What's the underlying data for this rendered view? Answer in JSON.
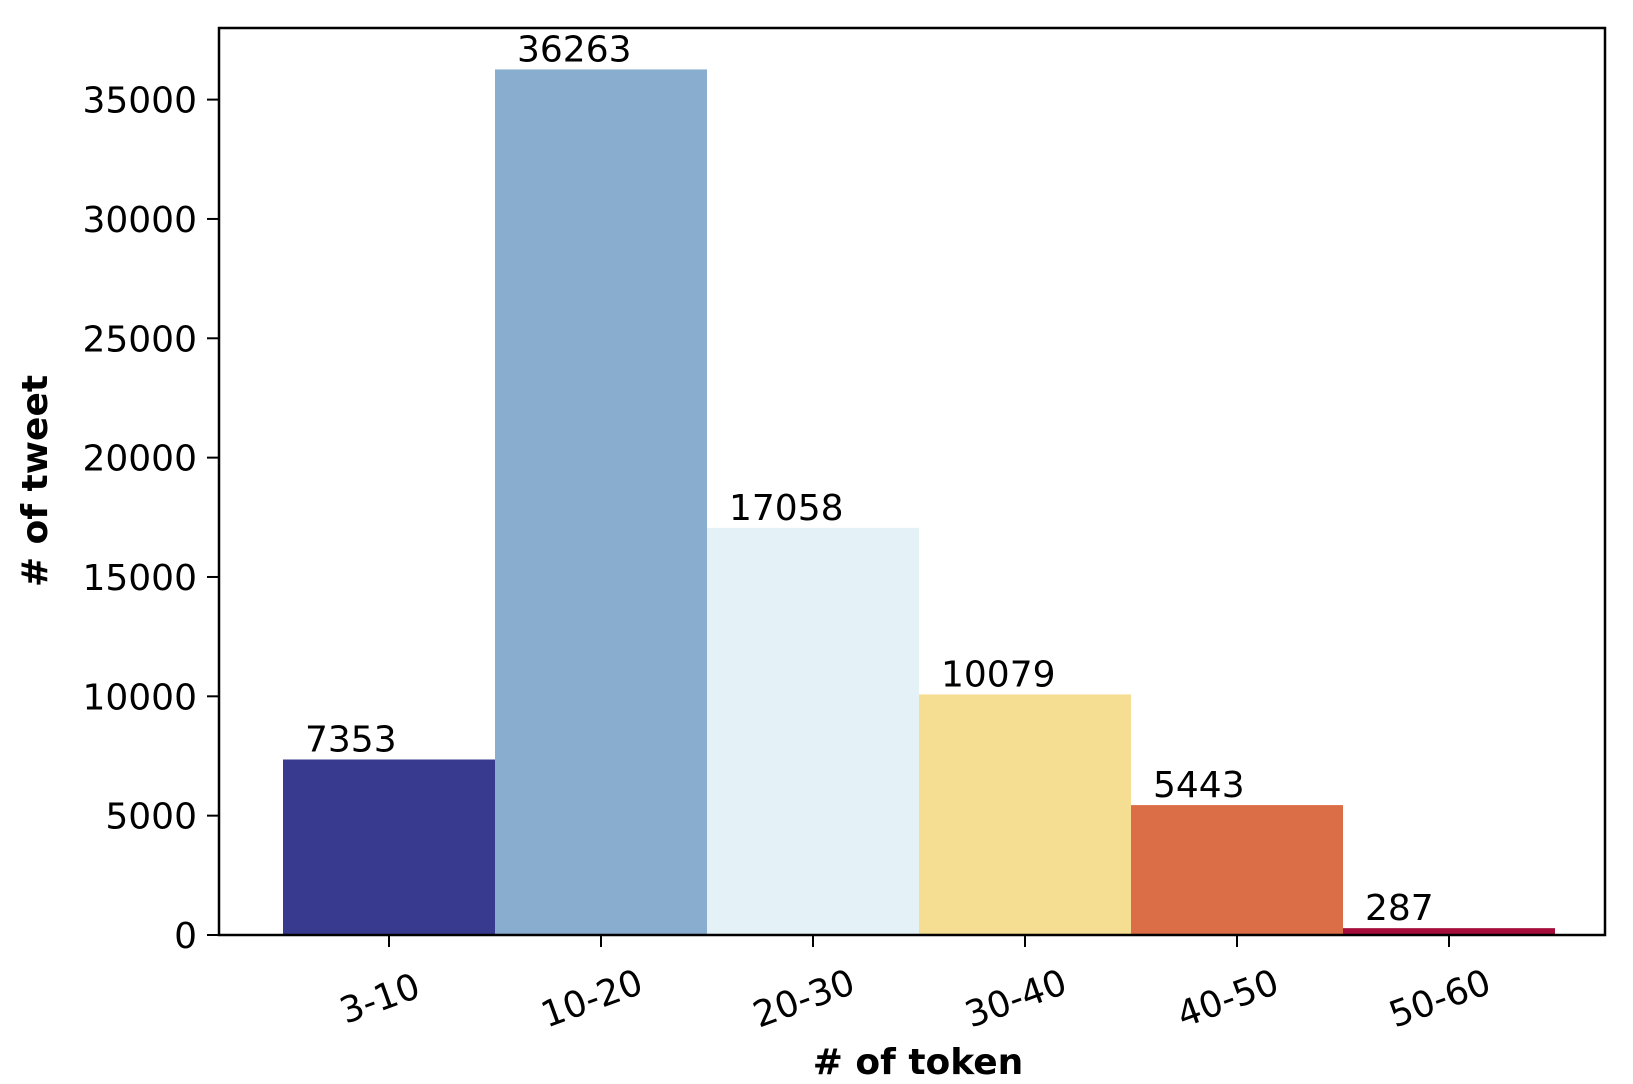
{
  "chart_data": {
    "type": "bar",
    "categories": [
      "3-10",
      "10-20",
      "20-30",
      "30-40",
      "40-50",
      "50-60"
    ],
    "values": [
      7353,
      36263,
      17058,
      10079,
      5443,
      287
    ],
    "bar_colors": [
      "#383a8f",
      "#88adcf",
      "#e4f1f7",
      "#f5de91",
      "#db6e47",
      "#a50d3a"
    ],
    "data_labels": [
      "7353",
      "36263",
      "17058",
      "10079",
      "5443",
      "287"
    ],
    "xlabel": "# of token",
    "ylabel": "# of tweet",
    "ylim": [
      0,
      38000
    ],
    "yticks": [
      0,
      5000,
      10000,
      15000,
      20000,
      25000,
      30000,
      35000
    ],
    "ytick_labels": [
      "0",
      "5000",
      "10000",
      "15000",
      "20000",
      "25000",
      "30000",
      "35000"
    ],
    "xtick_rotation_deg": -20,
    "grid": false,
    "legend": "none"
  }
}
